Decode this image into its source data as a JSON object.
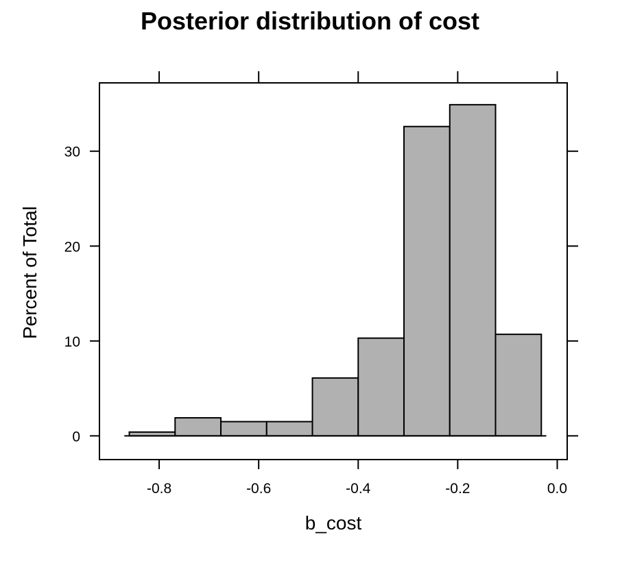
{
  "chart_data": {
    "type": "bar",
    "title": "Posterior distribution of cost",
    "xlabel": "b_cost",
    "ylabel": "Percent of Total",
    "xlim": [
      -0.92,
      0.02
    ],
    "ylim": [
      -2.5,
      37.2
    ],
    "x_ticks": [
      -0.8,
      -0.6,
      -0.4,
      -0.2,
      0.0
    ],
    "x_tick_labels": [
      "-0.8",
      "-0.6",
      "-0.4",
      "-0.2",
      "0.0"
    ],
    "y_ticks": [
      0,
      10,
      20,
      30
    ],
    "y_tick_labels": [
      "0",
      "10",
      "20",
      "30"
    ],
    "bins": [
      {
        "x0": -0.86,
        "x1": -0.768,
        "value": 0.4
      },
      {
        "x0": -0.768,
        "x1": -0.676,
        "value": 1.9
      },
      {
        "x0": -0.676,
        "x1": -0.584,
        "value": 1.5
      },
      {
        "x0": -0.584,
        "x1": -0.492,
        "value": 1.5
      },
      {
        "x0": -0.492,
        "x1": -0.4,
        "value": 6.1
      },
      {
        "x0": -0.4,
        "x1": -0.308,
        "value": 10.3
      },
      {
        "x0": -0.308,
        "x1": -0.216,
        "value": 32.6
      },
      {
        "x0": -0.216,
        "x1": -0.124,
        "value": 34.9
      },
      {
        "x0": -0.124,
        "x1": -0.032,
        "value": 10.7
      }
    ],
    "baseline_range": [
      -0.87,
      -0.022
    ],
    "bar_color": "#b1b1b1",
    "grid": false,
    "legend": "none"
  }
}
